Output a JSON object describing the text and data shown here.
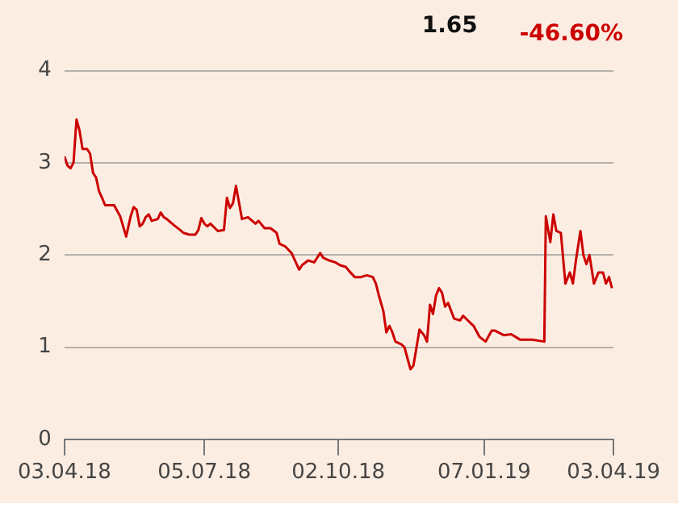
{
  "chart_data": {
    "type": "line",
    "annotations": [
      "1.65",
      "-46.60%"
    ],
    "xlim": [
      "2018-04-03",
      "2019-04-03"
    ],
    "xticks": [
      {
        "value": "2018-04-03",
        "label": "03.04.18"
      },
      {
        "value": "2018-07-05",
        "label": "05.07.18"
      },
      {
        "value": "2018-10-02",
        "label": "02.10.18"
      },
      {
        "value": "2019-01-07",
        "label": "07.01.19"
      },
      {
        "value": "2019-04-03",
        "label": "03.04.19"
      }
    ],
    "ylim": [
      0,
      4
    ],
    "yticks": [
      0,
      1,
      2,
      3,
      4
    ],
    "grid": "y",
    "legend": false,
    "marker": "none",
    "line_style": "solid",
    "tick_labels": "xy",
    "series": [
      {
        "color": "#cc0000",
        "x": [
          "2018-04-03",
          "2018-04-05",
          "2018-04-07",
          "2018-04-09",
          "2018-04-11",
          "2018-04-13",
          "2018-04-15",
          "2018-04-18",
          "2018-04-20",
          "2018-04-22",
          "2018-04-24",
          "2018-04-26",
          "2018-04-28",
          "2018-04-30",
          "2018-05-06",
          "2018-05-10",
          "2018-05-14",
          "2018-05-17",
          "2018-05-19",
          "2018-05-21",
          "2018-05-23",
          "2018-05-25",
          "2018-05-27",
          "2018-05-29",
          "2018-05-31",
          "2018-06-04",
          "2018-06-06",
          "2018-06-08",
          "2018-06-10",
          "2018-06-15",
          "2018-06-19",
          "2018-06-21",
          "2018-06-25",
          "2018-06-29",
          "2018-07-01",
          "2018-07-03",
          "2018-07-05",
          "2018-07-07",
          "2018-07-09",
          "2018-07-14",
          "2018-07-18",
          "2018-07-20",
          "2018-07-22",
          "2018-07-24",
          "2018-07-26",
          "2018-07-28",
          "2018-07-30",
          "2018-08-03",
          "2018-08-08",
          "2018-08-10",
          "2018-08-14",
          "2018-08-18",
          "2018-08-22",
          "2018-08-24",
          "2018-08-28",
          "2018-09-01",
          "2018-09-06",
          "2018-09-08",
          "2018-09-12",
          "2018-09-16",
          "2018-09-20",
          "2018-09-22",
          "2018-09-26",
          "2018-09-30",
          "2018-10-03",
          "2018-10-07",
          "2018-10-09",
          "2018-10-13",
          "2018-10-17",
          "2018-10-21",
          "2018-10-25",
          "2018-10-27",
          "2018-10-29",
          "2018-11-01",
          "2018-11-03",
          "2018-11-05",
          "2018-11-07",
          "2018-11-09",
          "2018-11-13",
          "2018-11-15",
          "2018-11-19",
          "2018-11-21",
          "2018-11-25",
          "2018-11-28",
          "2018-11-30",
          "2018-12-02",
          "2018-12-04",
          "2018-12-06",
          "2018-12-08",
          "2018-12-10",
          "2018-12-12",
          "2018-12-14",
          "2018-12-18",
          "2018-12-22",
          "2018-12-24",
          "2018-12-29",
          "2018-12-31",
          "2019-01-04",
          "2019-01-08",
          "2019-01-12",
          "2019-01-14",
          "2019-01-20",
          "2019-01-25",
          "2019-01-31",
          "2019-02-08",
          "2019-02-16",
          "2019-02-17",
          "2019-02-20",
          "2019-02-22",
          "2019-02-24",
          "2019-02-27",
          "2019-03-02",
          "2019-03-05",
          "2019-03-07",
          "2019-03-09",
          "2019-03-12",
          "2019-03-14",
          "2019-03-16",
          "2019-03-18",
          "2019-03-21",
          "2019-03-24",
          "2019-03-27",
          "2019-03-29",
          "2019-03-31",
          "2019-04-02"
        ],
        "values": [
          3.07,
          2.97,
          2.94,
          3.0,
          3.47,
          3.35,
          3.15,
          3.15,
          3.1,
          2.89,
          2.84,
          2.69,
          2.62,
          2.54,
          2.54,
          2.42,
          2.2,
          2.42,
          2.52,
          2.49,
          2.31,
          2.34,
          2.41,
          2.44,
          2.37,
          2.39,
          2.46,
          2.41,
          2.39,
          2.32,
          2.27,
          2.24,
          2.22,
          2.22,
          2.27,
          2.4,
          2.34,
          2.31,
          2.34,
          2.26,
          2.27,
          2.62,
          2.51,
          2.56,
          2.75,
          2.57,
          2.39,
          2.41,
          2.34,
          2.37,
          2.29,
          2.29,
          2.24,
          2.12,
          2.09,
          2.02,
          1.84,
          1.89,
          1.94,
          1.92,
          2.02,
          1.97,
          1.94,
          1.92,
          1.89,
          1.87,
          1.83,
          1.76,
          1.76,
          1.78,
          1.76,
          1.69,
          1.56,
          1.39,
          1.16,
          1.23,
          1.16,
          1.06,
          1.03,
          1.0,
          0.76,
          0.8,
          1.19,
          1.13,
          1.06,
          1.46,
          1.36,
          1.56,
          1.64,
          1.59,
          1.44,
          1.48,
          1.31,
          1.29,
          1.34,
          1.26,
          1.23,
          1.11,
          1.06,
          1.18,
          1.18,
          1.13,
          1.14,
          1.08,
          1.08,
          1.06,
          2.42,
          2.14,
          2.44,
          2.26,
          2.24,
          1.69,
          1.81,
          1.69,
          1.94,
          2.26,
          2.0,
          1.9,
          2.0,
          1.69,
          1.81,
          1.81,
          1.69,
          1.76,
          1.64
        ]
      }
    ]
  }
}
